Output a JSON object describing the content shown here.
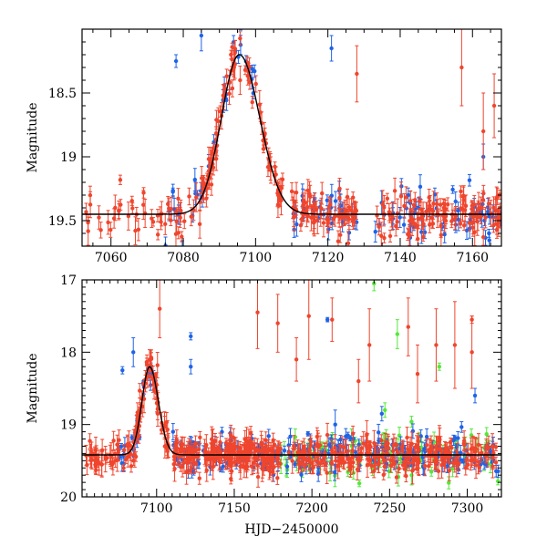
{
  "colors": {
    "red": "#f0452d",
    "blue": "#1f63e6",
    "green": "#54e83a",
    "model": "#000000"
  },
  "chart_data": [
    {
      "type": "scatter",
      "panel": "top",
      "xlabel": "",
      "ylabel": "Magnitude",
      "xlim": [
        7052,
        7168
      ],
      "ylim": [
        19.7,
        18.0
      ],
      "xticks": [
        7060,
        7080,
        7100,
        7120,
        7140,
        7160
      ],
      "xtick_labels": [
        "7060",
        "7080",
        "7100",
        "7120",
        "7140",
        "7160"
      ],
      "yticks": [
        18.5,
        19.0,
        19.5
      ],
      "ytick_labels": [
        "18.5",
        "19",
        "19.5"
      ],
      "model": {
        "peak_time": 7095.5,
        "peak_mag": 18.2,
        "baseline_mag": 19.45,
        "rise_width": 7,
        "decay_width": 8
      },
      "series": [
        {
          "name": "red",
          "color_key": "red",
          "draw_order": 2,
          "noise": 0.08,
          "error": 0.06,
          "clusters": [
            [
              7053,
              7090,
              60
            ],
            [
              7085,
              7108,
              80
            ],
            [
              7110,
              7128,
              70
            ],
            [
              7133,
              7168,
              120
            ]
          ],
          "outliers": [
            [
              7128,
              18.35,
              0.22
            ],
            [
              7157,
              18.3,
              0.3
            ],
            [
              7163,
              18.8,
              0.3
            ],
            [
              7166,
              18.6,
              0.25
            ]
          ]
        },
        {
          "name": "blue",
          "color_key": "blue",
          "draw_order": 1,
          "noise": 0.1,
          "error": 0.05,
          "clusters": [
            [
              7075,
              7100,
              35
            ],
            [
              7110,
              7128,
              35
            ],
            [
              7133,
              7168,
              60
            ]
          ],
          "outliers": [
            [
              7078,
              18.25,
              0.05
            ],
            [
              7085,
              18.05,
              0.12
            ],
            [
              7121,
              18.15,
              0.1
            ],
            [
              7163,
              19.0,
              0.1
            ]
          ]
        }
      ]
    },
    {
      "type": "scatter",
      "panel": "bottom",
      "xlabel": "HJD−2450000",
      "ylabel": "Magnitude",
      "xlim": [
        7052,
        7322
      ],
      "ylim": [
        20.0,
        17.0
      ],
      "xticks": [
        7100,
        7150,
        7200,
        7250,
        7300
      ],
      "xtick_labels": [
        "7100",
        "7150",
        "7200",
        "7250",
        "7300"
      ],
      "yticks": [
        17,
        18,
        19,
        20
      ],
      "ytick_labels": [
        "17",
        "18",
        "19",
        "20"
      ],
      "model": {
        "peak_time": 7095.5,
        "peak_mag": 18.2,
        "baseline_mag": 19.42,
        "rise_width": 7,
        "decay_width": 8
      },
      "series": [
        {
          "name": "green",
          "color_key": "green",
          "draw_order": 0,
          "noise": 0.15,
          "error": 0.08,
          "clusters": [
            [
              7180,
              7320,
              110
            ]
          ],
          "outliers": [
            [
              7240,
              17.05,
              0.1
            ],
            [
              7255,
              17.75,
              0.2
            ],
            [
              7282,
              18.2,
              0.05
            ],
            [
              7247,
              18.8,
              0.1
            ]
          ]
        },
        {
          "name": "blue",
          "color_key": "blue",
          "draw_order": 1,
          "noise": 0.12,
          "error": 0.06,
          "clusters": [
            [
              7075,
              7100,
              30
            ],
            [
              7110,
              7128,
              25
            ],
            [
              7130,
              7320,
              220
            ]
          ],
          "outliers": [
            [
              7078,
              18.25,
              0.05
            ],
            [
              7085,
              18.0,
              0.2
            ],
            [
              7122,
              17.78,
              0.05
            ],
            [
              7122,
              18.2,
              0.1
            ],
            [
              7210,
              17.55,
              0.03
            ],
            [
              7305,
              18.6,
              0.1
            ],
            [
              7245,
              18.85,
              0.1
            ],
            [
              7215,
              19.0,
              0.2
            ]
          ]
        },
        {
          "name": "red",
          "color_key": "red",
          "draw_order": 2,
          "noise": 0.12,
          "error": 0.1,
          "clusters": [
            [
              7053,
              7090,
              55
            ],
            [
              7085,
              7108,
              60
            ],
            [
              7110,
              7128,
              50
            ],
            [
              7130,
              7180,
              160
            ],
            [
              7185,
              7320,
              240
            ]
          ],
          "outliers": [
            [
              7102,
              17.4,
              0.4
            ],
            [
              7165,
              17.45,
              0.5
            ],
            [
              7178,
              17.6,
              0.4
            ],
            [
              7198,
              17.5,
              0.6
            ],
            [
              7213,
              17.55,
              0.3
            ],
            [
              7237,
              17.9,
              0.5
            ],
            [
              7262,
              17.65,
              0.4
            ],
            [
              7280,
              17.9,
              0.5
            ],
            [
              7292,
              17.9,
              0.6
            ],
            [
              7303,
              17.55,
              0.05
            ],
            [
              7303,
              18.0,
              0.5
            ],
            [
              7190,
              18.1,
              0.3
            ],
            [
              7230,
              18.4,
              0.3
            ],
            [
              7268,
              18.3,
              0.4
            ]
          ]
        }
      ]
    }
  ]
}
